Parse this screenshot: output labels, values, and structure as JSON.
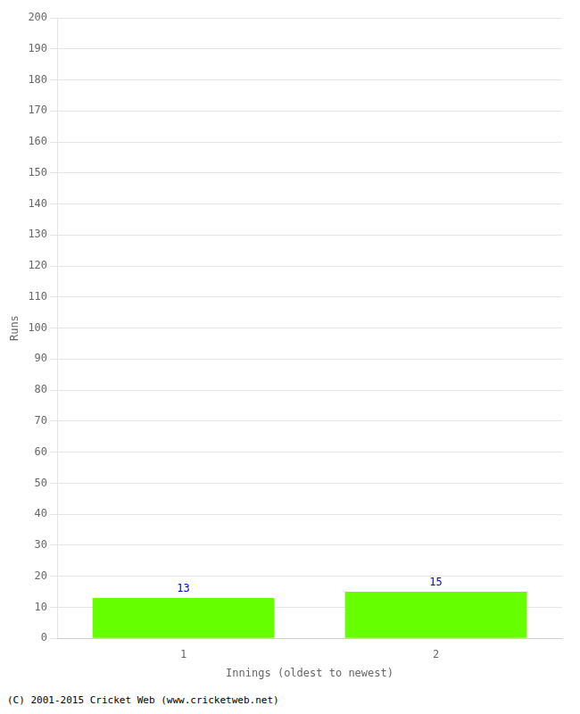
{
  "chart_data": {
    "type": "bar",
    "categories": [
      "1",
      "2"
    ],
    "values": [
      13,
      15
    ],
    "color": "#66ff00",
    "xlabel": "Innings (oldest to newest)",
    "ylabel": "Runs",
    "ylim": [
      0,
      200
    ],
    "yticks": [
      0,
      10,
      20,
      30,
      40,
      50,
      60,
      70,
      80,
      90,
      100,
      110,
      120,
      130,
      140,
      150,
      160,
      170,
      180,
      190,
      200
    ],
    "grid": true,
    "data_labels": true,
    "annotations": [
      "(C) 2001-2015 Cricket Web (www.cricketweb.net)"
    ]
  }
}
